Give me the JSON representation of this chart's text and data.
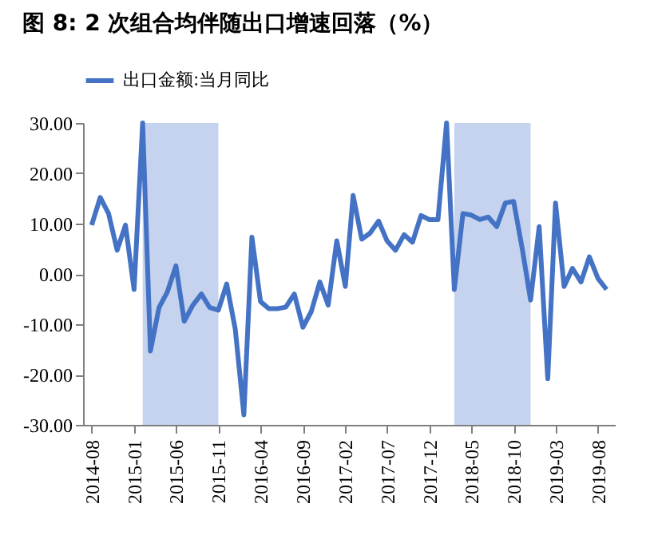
{
  "chart_data": {
    "type": "line",
    "title": "图 8: 2 次组合均伴随出口增速回落（%）",
    "x": [
      "2014-08",
      "2014-09",
      "2014-10",
      "2014-11",
      "2014-12",
      "2015-01",
      "2015-02",
      "2015-03",
      "2015-04",
      "2015-05",
      "2015-06",
      "2015-07",
      "2015-08",
      "2015-09",
      "2015-10",
      "2015-11",
      "2015-12",
      "2016-01",
      "2016-02",
      "2016-03",
      "2016-04",
      "2016-05",
      "2016-06",
      "2016-07",
      "2016-08",
      "2016-09",
      "2016-10",
      "2016-11",
      "2016-12",
      "2017-01",
      "2017-02",
      "2017-03",
      "2017-04",
      "2017-05",
      "2017-06",
      "2017-07",
      "2017-08",
      "2017-09",
      "2017-10",
      "2017-11",
      "2017-12",
      "2018-01",
      "2018-02",
      "2018-03",
      "2018-04",
      "2018-05",
      "2018-06",
      "2018-07",
      "2018-08",
      "2018-09",
      "2018-10",
      "2018-11",
      "2018-12",
      "2019-01",
      "2019-02",
      "2019-03",
      "2019-04",
      "2019-05",
      "2019-06",
      "2019-07",
      "2019-08",
      "2019-09"
    ],
    "series": [
      {
        "name": "出口金额:当月同比",
        "color": "#4472c4",
        "values": [
          9.7,
          15.2,
          12,
          4.7,
          9.7,
          -3.1,
          30,
          -15.3,
          -6.7,
          -3.6,
          1.6,
          -9.4,
          -6.2,
          -4,
          -6.7,
          -7.2,
          -2,
          -11,
          -28,
          7.3,
          -5.5,
          -6.9,
          -6.9,
          -6.6,
          -4,
          -10.6,
          -7.5,
          -1.6,
          -6.2,
          6.6,
          -2.5,
          15.6,
          6.9,
          8.1,
          10.5,
          6.6,
          4.7,
          7.8,
          6.3,
          11.6,
          10.8,
          10.8,
          30,
          -3.1,
          12,
          11.7,
          10.8,
          11.3,
          9.4,
          14.1,
          14.4,
          5,
          -5.2,
          9.4,
          -20.8,
          14.1,
          -2.5,
          1.1,
          -1.6,
          3.4,
          -0.9,
          -3.1
        ]
      }
    ],
    "xlim": [
      "2014-07",
      "2019-10"
    ],
    "xticks": [
      "2014-08",
      "2015-01",
      "2015-06",
      "2015-11",
      "2016-04",
      "2016-09",
      "2017-02",
      "2017-07",
      "2017-12",
      "2018-05",
      "2018-10",
      "2019-03",
      "2019-08"
    ],
    "ylim": [
      -30,
      30
    ],
    "yticks": [
      {
        "value": -30,
        "label": "-30.00"
      },
      {
        "value": -20,
        "label": "-20.00"
      },
      {
        "value": -10,
        "label": "-10.00"
      },
      {
        "value": 0,
        "label": "0.00"
      },
      {
        "value": 10,
        "label": "10.00"
      },
      {
        "value": 20,
        "label": "20.00"
      },
      {
        "value": 30,
        "label": "30.00"
      }
    ],
    "bands": [
      {
        "axis": "x",
        "from": "2015-02",
        "to": "2015-11",
        "color": "#c5d3ee"
      },
      {
        "axis": "x",
        "from": "2018-03",
        "to": "2018-12",
        "color": "#c5d3ee"
      }
    ],
    "legend": "top",
    "grid": false,
    "marker": "none",
    "line_style": "solid"
  }
}
